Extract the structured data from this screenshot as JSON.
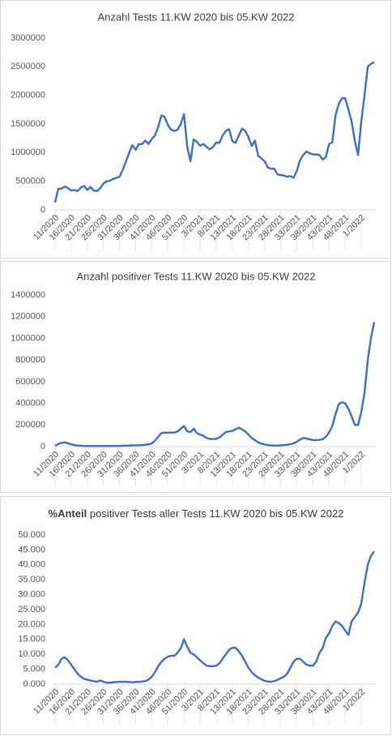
{
  "chart_data": [
    {
      "type": "line",
      "title": "Anzahl Tests 11.KW 2020 bis 05.KW 2022",
      "color": "#4472c4",
      "grid": false,
      "categories": [
        "11/2020",
        null,
        null,
        null,
        null,
        "16/2020",
        null,
        null,
        null,
        null,
        "21/2020",
        null,
        null,
        null,
        null,
        "26/2020",
        null,
        null,
        null,
        null,
        "31/2020",
        null,
        null,
        null,
        null,
        "36/2020",
        null,
        null,
        null,
        null,
        "41/2020",
        null,
        null,
        null,
        null,
        "46/2020",
        null,
        null,
        null,
        null,
        "51/2020",
        null,
        null,
        null,
        null,
        "3/2021",
        null,
        null,
        null,
        null,
        "8/2021",
        null,
        null,
        null,
        null,
        "13/2021",
        null,
        null,
        null,
        null,
        "18/2021",
        null,
        null,
        null,
        null,
        "23/2021",
        null,
        null,
        null,
        null,
        "28/2021",
        null,
        null,
        null,
        null,
        "33/2021",
        null,
        null,
        null,
        null,
        "38/2021",
        null,
        null,
        null,
        null,
        "43/2021",
        null,
        null,
        null,
        null,
        "48/2021",
        null,
        null,
        null,
        null,
        "1/2022",
        null,
        null,
        null,
        null
      ],
      "values": [
        130000,
        370000,
        370000,
        410000,
        380000,
        340000,
        350000,
        330000,
        390000,
        420000,
        350000,
        400000,
        340000,
        330000,
        380000,
        460000,
        500000,
        510000,
        540000,
        560000,
        580000,
        700000,
        850000,
        1000000,
        1130000,
        1050000,
        1150000,
        1150000,
        1210000,
        1150000,
        1240000,
        1300000,
        1450000,
        1650000,
        1620000,
        1480000,
        1400000,
        1380000,
        1400000,
        1500000,
        1670000,
        1100000,
        850000,
        1230000,
        1190000,
        1120000,
        1150000,
        1100000,
        1060000,
        1100000,
        1180000,
        1170000,
        1300000,
        1380000,
        1410000,
        1200000,
        1170000,
        1300000,
        1420000,
        1380000,
        1270000,
        1120000,
        1210000,
        950000,
        900000,
        850000,
        740000,
        720000,
        720000,
        620000,
        610000,
        600000,
        580000,
        590000,
        560000,
        680000,
        870000,
        960000,
        1020000,
        990000,
        970000,
        970000,
        960000,
        880000,
        920000,
        1150000,
        1180000,
        1650000,
        1850000,
        1950000,
        1950000,
        1750000,
        1550000,
        1200000,
        960000,
        1550000,
        2000000,
        2500000,
        2550000,
        2580000
      ],
      "ylim": [
        0,
        3000000
      ],
      "yticks": [
        0,
        500000,
        1000000,
        1500000,
        2000000,
        2500000,
        3000000
      ]
    },
    {
      "type": "line",
      "title": "Anzahl positiver Tests 11.KW 2020 bis 05.KW 2022",
      "color": "#4472c4",
      "grid": false,
      "categories": [
        "11/2020",
        null,
        null,
        null,
        null,
        "16/2020",
        null,
        null,
        null,
        null,
        "21/2020",
        null,
        null,
        null,
        null,
        "26/2020",
        null,
        null,
        null,
        null,
        "31/2020",
        null,
        null,
        null,
        null,
        "36/2020",
        null,
        null,
        null,
        null,
        "41/2020",
        null,
        null,
        null,
        null,
        "46/2020",
        null,
        null,
        null,
        null,
        "51/2020",
        null,
        null,
        null,
        null,
        "3/2021",
        null,
        null,
        null,
        null,
        "8/2021",
        null,
        null,
        null,
        null,
        "13/2021",
        null,
        null,
        null,
        null,
        "18/2021",
        null,
        null,
        null,
        null,
        "23/2021",
        null,
        null,
        null,
        null,
        "28/2021",
        null,
        null,
        null,
        null,
        "33/2021",
        null,
        null,
        null,
        null,
        "38/2021",
        null,
        null,
        null,
        null,
        "43/2021",
        null,
        null,
        null,
        null,
        "48/2021",
        null,
        null,
        null,
        null,
        "1/2022",
        null,
        null,
        null,
        null
      ],
      "values": [
        10000,
        25000,
        35000,
        40000,
        30000,
        22000,
        15000,
        10000,
        8000,
        6000,
        5000,
        5000,
        5000,
        5000,
        5000,
        5000,
        5000,
        5000,
        5000,
        5000,
        7000,
        8000,
        9000,
        10000,
        12000,
        12000,
        13000,
        15000,
        18000,
        20000,
        30000,
        55000,
        90000,
        125000,
        130000,
        128000,
        130000,
        130000,
        140000,
        165000,
        190000,
        140000,
        135000,
        165000,
        125000,
        110000,
        100000,
        80000,
        70000,
        70000,
        72000,
        85000,
        110000,
        135000,
        140000,
        145000,
        160000,
        175000,
        160000,
        140000,
        110000,
        80000,
        60000,
        40000,
        28000,
        20000,
        15000,
        12000,
        10000,
        10000,
        12000,
        15000,
        18000,
        22000,
        30000,
        45000,
        65000,
        80000,
        75000,
        68000,
        60000,
        60000,
        62000,
        68000,
        90000,
        130000,
        190000,
        300000,
        390000,
        410000,
        400000,
        350000,
        280000,
        200000,
        200000,
        320000,
        500000,
        800000,
        1000000,
        1150000
      ],
      "ylim": [
        0,
        1400000
      ],
      "yticks": [
        0,
        200000,
        400000,
        600000,
        800000,
        1000000,
        1200000,
        1400000
      ]
    },
    {
      "type": "line",
      "title_bold": "%Anteil",
      "title": "positiver Tests aller Tests 11.KW 2020 bis 05.KW 2022",
      "color": "#4472c4",
      "grid": false,
      "categories": [
        "11/2020",
        null,
        null,
        null,
        null,
        "16/2020",
        null,
        null,
        null,
        null,
        "21/2020",
        null,
        null,
        null,
        null,
        "26/2020",
        null,
        null,
        null,
        null,
        "31/2020",
        null,
        null,
        null,
        null,
        "36/2020",
        null,
        null,
        null,
        null,
        "41/2020",
        null,
        null,
        null,
        null,
        "46/2020",
        null,
        null,
        null,
        null,
        "51/2020",
        null,
        null,
        null,
        null,
        "3/2021",
        null,
        null,
        null,
        null,
        "8/2021",
        null,
        null,
        null,
        null,
        "13/2021",
        null,
        null,
        null,
        null,
        "18/2021",
        null,
        null,
        null,
        null,
        "23/2021",
        null,
        null,
        null,
        null,
        "28/2021",
        null,
        null,
        null,
        null,
        "33/2021",
        null,
        null,
        null,
        null,
        "38/2021",
        null,
        null,
        null,
        null,
        "43/2021",
        null,
        null,
        null,
        null,
        "48/2021",
        null,
        null,
        null,
        null,
        "1/2022",
        null,
        null,
        null,
        null
      ],
      "values": [
        5.5,
        6.5,
        8.5,
        9,
        8,
        6.5,
        5,
        3.5,
        2.5,
        1.8,
        1.5,
        1.2,
        1,
        0.8,
        1.2,
        0.8,
        0.5,
        0.5,
        0.6,
        0.7,
        0.8,
        0.8,
        0.8,
        0.7,
        0.6,
        0.7,
        0.8,
        0.9,
        1,
        1.5,
        2.5,
        4,
        6,
        7.5,
        8.5,
        9.2,
        9.5,
        9.5,
        10.5,
        12,
        15,
        12.5,
        10.5,
        10,
        9,
        8,
        7,
        6.2,
        6,
        6,
        6.2,
        7,
        8.5,
        10,
        11.5,
        12.2,
        12.2,
        11,
        9.5,
        7.5,
        5.5,
        4,
        3,
        2.2,
        1.6,
        1.1,
        0.9,
        0.8,
        1,
        1.4,
        2,
        2.5,
        3.5,
        5.5,
        7.5,
        8.5,
        8.5,
        7.5,
        6.5,
        6.2,
        6.2,
        7.5,
        10.5,
        12,
        15.5,
        17,
        19.5,
        21,
        20.5,
        19.5,
        18,
        16.5,
        21,
        22.5,
        24,
        27,
        34,
        40,
        43,
        44.5
      ],
      "ylim": [
        0,
        50
      ],
      "yticks": [
        {
          "value": 0,
          "label": "0.000"
        },
        {
          "value": 5,
          "label": "5.000"
        },
        {
          "value": 10,
          "label": "10.000"
        },
        {
          "value": 15,
          "label": "15.000"
        },
        {
          "value": 20,
          "label": "20.000"
        },
        {
          "value": 25,
          "label": "25.000"
        },
        {
          "value": 30,
          "label": "30.000"
        },
        {
          "value": 35,
          "label": "35.000"
        },
        {
          "value": 40,
          "label": "40.000"
        },
        {
          "value": 45,
          "label": "45.000"
        },
        {
          "value": 50,
          "label": "50.000"
        }
      ]
    }
  ]
}
